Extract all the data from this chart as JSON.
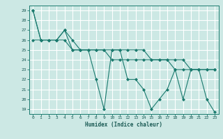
{
  "xlabel": "Humidex (Indice chaleur)",
  "ylabel": "",
  "bg_color": "#cce8e4",
  "grid_color": "#ffffff",
  "line_color": "#1a7a6e",
  "marker_color": "#1a7a6e",
  "xlim": [
    -0.5,
    23.5
  ],
  "ylim": [
    18.5,
    29.5
  ],
  "xticks": [
    0,
    1,
    2,
    3,
    4,
    5,
    6,
    7,
    8,
    9,
    10,
    11,
    12,
    13,
    14,
    15,
    16,
    17,
    18,
    19,
    20,
    21,
    22,
    23
  ],
  "yticks": [
    19,
    20,
    21,
    22,
    23,
    24,
    25,
    26,
    27,
    28,
    29
  ],
  "series": [
    [
      29,
      26,
      26,
      26,
      27,
      25,
      25,
      25,
      22,
      19,
      25,
      25,
      22,
      22,
      21,
      19,
      20,
      21,
      23,
      20,
      23,
      23,
      20,
      18.7
    ],
    [
      26,
      26,
      26,
      26,
      26,
      25,
      25,
      25,
      25,
      25,
      24,
      24,
      24,
      24,
      24,
      24,
      24,
      24,
      23,
      23,
      23,
      23,
      23,
      23
    ],
    [
      29,
      26,
      26,
      26,
      27,
      26,
      25,
      25,
      25,
      25,
      25,
      25,
      25,
      25,
      25,
      24,
      24,
      24,
      24,
      24,
      23,
      23,
      23,
      23
    ]
  ]
}
